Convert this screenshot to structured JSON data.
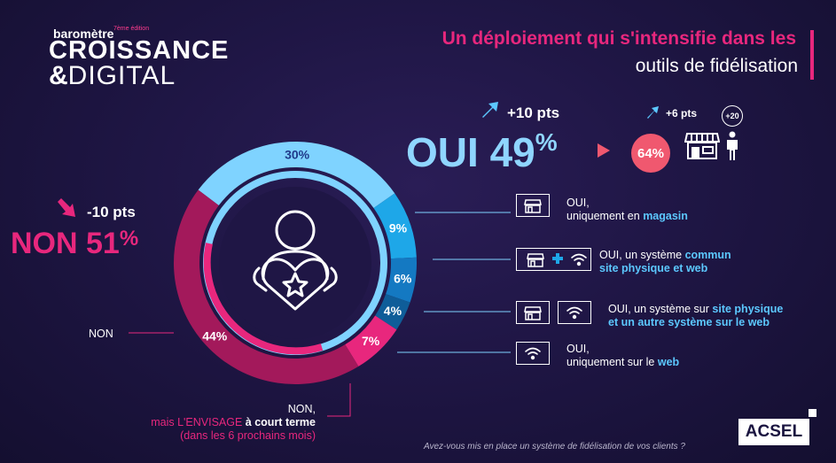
{
  "logo": {
    "top": "baromètre",
    "edition": "7ème édition",
    "main": "CROISSANCE",
    "amp": "&",
    "sub": "DIGITAL"
  },
  "title": {
    "line1": "Un déploiement qui s'intensifie dans les",
    "line2": "outils de fidélisation"
  },
  "oui": {
    "delta": "+10 pts",
    "label": "OUI",
    "pct": "49",
    "pct_sign": "%",
    "sub_delta": "+6 pts",
    "sub_pct": "64%",
    "age_badge": "+20"
  },
  "non": {
    "delta": "-10 pts",
    "label": "NON",
    "pct": "51",
    "pct_sign": "%"
  },
  "legend": {
    "magasin_l1": "OUI,",
    "magasin_l2a": "uniquement en ",
    "magasin_l2b": "magasin",
    "commun_l1a": "OUI, un système ",
    "commun_l1b": "commun",
    "commun_l2": "site physique et web",
    "separe_l1a": "OUI, un système sur ",
    "separe_l1b": "site physique",
    "separe_l2": "et un autre système sur le web",
    "web_l1": "OUI,",
    "web_l2a": "uniquement sur le ",
    "web_l2b": "web",
    "non": "NON",
    "envisage_l1": "NON,",
    "envisage_l2a": "mais  L'ENVISAGE ",
    "envisage_l2b": "à court terme",
    "envisage_l3": "(dans les 6 prochains mois)"
  },
  "question": "Avez-vous mis en place un système de fidélisation de vos clients ?",
  "brand": "ACSEL",
  "colors": {
    "magenta": "#c2185b",
    "pink": "#e8277d",
    "light_blue": "#7fd3ff",
    "mid_blue": "#1ea7e8",
    "blue": "#1479c2",
    "dark_blue": "#0f5d99",
    "background": "#1f1645"
  },
  "icons": [
    "shop-icon",
    "wifi-icon",
    "plus-icon",
    "person-icon",
    "up-arrow-icon",
    "down-arrow-icon",
    "heart-person-icon"
  ],
  "chart_data": {
    "type": "pie",
    "categories": [
      "OUI, uniquement en magasin",
      "OUI, un système commun site physique et web",
      "OUI, un système sur site physique et un autre système sur le web",
      "OUI, uniquement sur le web",
      "NON, mais L'ENVISAGE à court terme",
      "NON"
    ],
    "values": [
      30,
      9,
      6,
      4,
      7,
      44
    ],
    "labels": [
      "30%",
      "9%",
      "6%",
      "4%",
      "7%",
      "44%"
    ],
    "colors": [
      "#7fd3ff",
      "#1ea7e8",
      "#1479c2",
      "#0f5d99",
      "#e8277d",
      "#a3195b"
    ]
  }
}
